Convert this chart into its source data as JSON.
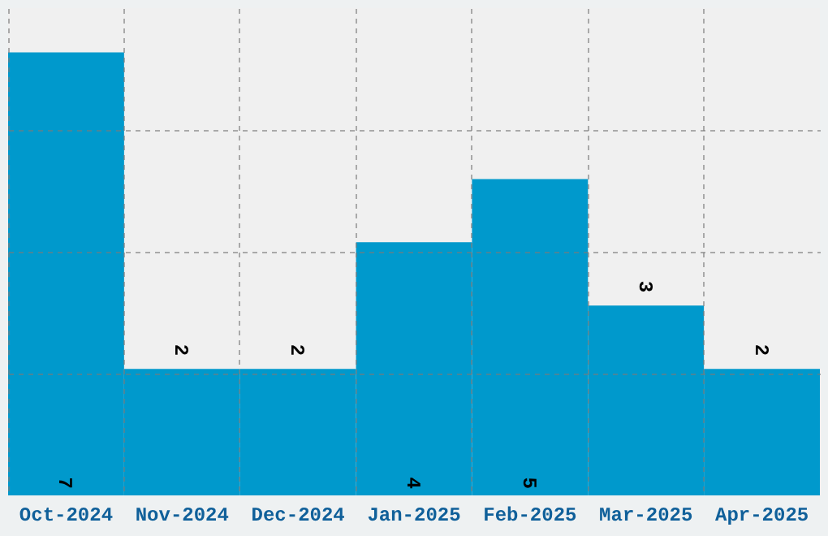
{
  "chart_data": {
    "type": "bar",
    "categories": [
      "Oct-2024",
      "Nov-2024",
      "Dec-2024",
      "Jan-2025",
      "Feb-2025",
      "Mar-2025",
      "Apr-2025"
    ],
    "values": [
      7,
      2,
      2,
      4,
      5,
      3,
      2
    ],
    "color": "#0099cc",
    "ylim": [
      0,
      7.7
    ],
    "yticks": [
      {
        "value": 1.93,
        "label": null
      },
      {
        "value": 3.85,
        "label": null
      },
      {
        "value": 5.78,
        "label": null
      }
    ],
    "grid": true,
    "data_labels": true,
    "tick_labels": "x"
  }
}
